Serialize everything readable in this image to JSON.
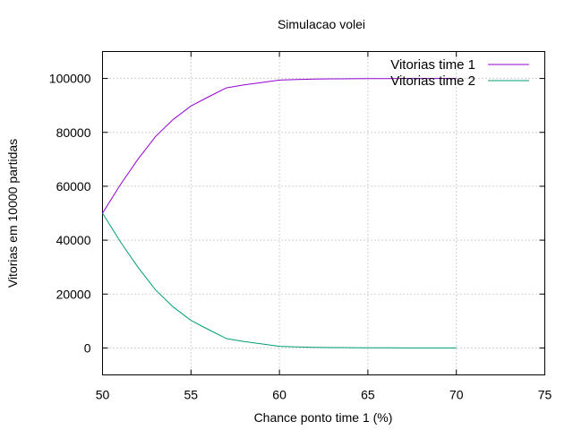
{
  "chart_data": {
    "type": "line",
    "title": "Simulacao volei",
    "xlabel": "Chance ponto time 1 (%)",
    "ylabel": "Vitorias em 10000 partidas",
    "xlim": [
      50,
      75
    ],
    "ylim": [
      -10000,
      110000
    ],
    "xticks": [
      50,
      55,
      60,
      65,
      70,
      75
    ],
    "yticks": [
      0,
      20000,
      40000,
      60000,
      80000,
      100000
    ],
    "grid": true,
    "legend_position": "top-right",
    "series": [
      {
        "name": "Vitorias time 1",
        "color": "#9400d3",
        "x": [
          50,
          51,
          52,
          53,
          54,
          55,
          56,
          57,
          58,
          59,
          60,
          61,
          62,
          63,
          64,
          65,
          66,
          67,
          68,
          69,
          70
        ],
        "y": [
          50000,
          60500,
          70000,
          78500,
          84800,
          89800,
          93200,
          96500,
          97600,
          98500,
          99400,
          99600,
          99800,
          99850,
          99900,
          99950,
          99970,
          99980,
          99990,
          99995,
          100000
        ]
      },
      {
        "name": "Vitorias time 2",
        "color": "#009e73",
        "x": [
          50,
          51,
          52,
          53,
          54,
          55,
          56,
          57,
          58,
          59,
          60,
          61,
          62,
          63,
          64,
          65,
          66,
          67,
          68,
          69,
          70
        ],
        "y": [
          50000,
          39500,
          30000,
          21500,
          15200,
          10200,
          6800,
          3500,
          2400,
          1500,
          600,
          400,
          200,
          150,
          100,
          50,
          30,
          20,
          10,
          5,
          0
        ]
      }
    ]
  }
}
